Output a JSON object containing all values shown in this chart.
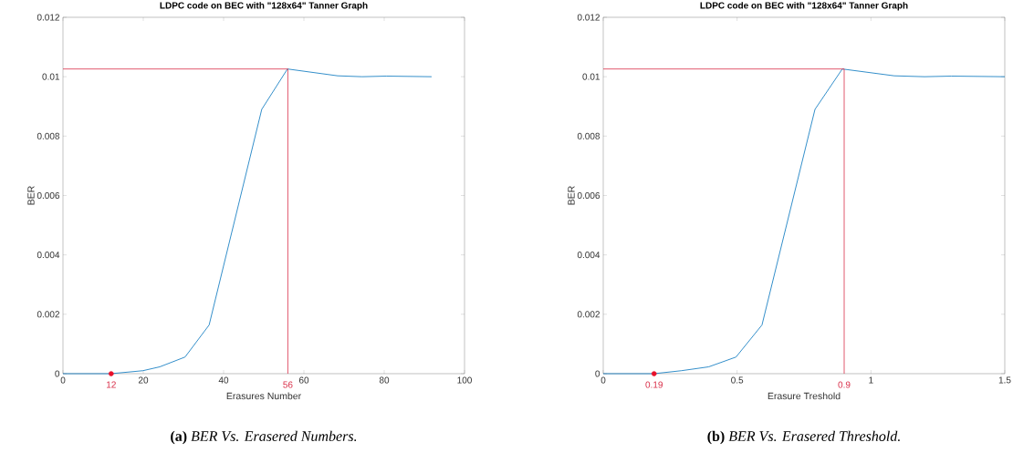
{
  "chart_data": [
    {
      "type": "line",
      "title": "LDPC code on BEC with \"128x64\" Tanner Graph",
      "xlabel": "Erasures Number",
      "ylabel": "BER",
      "xlim": [
        0,
        100
      ],
      "ylim": [
        0,
        0.012
      ],
      "xticks": [
        0,
        20,
        40,
        60,
        80,
        100
      ],
      "yticks": [
        0,
        0.002,
        0.004,
        0.006,
        0.008,
        0.01,
        0.012
      ],
      "grid": false,
      "series": [
        {
          "color": "#0072bd",
          "x": [
            0,
            12,
            19.9,
            24.1,
            30.4,
            36.4,
            49.5,
            55.9,
            68.4,
            74.5,
            80.5,
            91.8
          ],
          "values": [
            0,
            0,
            0.0001,
            0.00023,
            0.00056,
            0.00164,
            0.0089,
            0.01026,
            0.01003,
            0.01,
            0.01002,
            0.01
          ]
        },
        {
          "color": "#d9304a",
          "x": [
            0,
            56,
            56
          ],
          "values": [
            0.01026,
            0.01026,
            0
          ]
        },
        {
          "type": "scatter",
          "color": "#e8102a",
          "marker": "circle",
          "x": [
            12
          ],
          "values": [
            0
          ]
        }
      ],
      "annotations": [
        {
          "text": "12",
          "x": 12,
          "y": 0
        },
        {
          "text": "56",
          "x": 56,
          "y": 0
        },
        "**(a)** *BER Vs. Erasered Numbers.*"
      ]
    },
    {
      "type": "line",
      "title": "LDPC code on BEC with \"128x64\" Tanner Graph",
      "xlabel": "Erasure Treshold",
      "ylabel": "BER",
      "xlim": [
        0,
        1.5
      ],
      "ylim": [
        0,
        0.012
      ],
      "xticks": [
        0,
        0.5,
        1,
        1.5
      ],
      "yticks": [
        0,
        0.002,
        0.004,
        0.006,
        0.008,
        0.01,
        0.012
      ],
      "grid": false,
      "series": [
        {
          "color": "#0072bd",
          "x": [
            0,
            0.19,
            0.292,
            0.394,
            0.496,
            0.593,
            0.791,
            0.893,
            1.087,
            1.2,
            1.3,
            1.5
          ],
          "values": [
            0,
            0,
            0.0001,
            0.00023,
            0.00056,
            0.00164,
            0.0089,
            0.01026,
            0.01003,
            0.01,
            0.01002,
            0.01
          ]
        },
        {
          "color": "#d9304a",
          "x": [
            0,
            0.9,
            0.9
          ],
          "values": [
            0.01026,
            0.01026,
            0
          ]
        },
        {
          "type": "scatter",
          "color": "#e8102a",
          "marker": "circle",
          "x": [
            0.19
          ],
          "values": [
            0
          ]
        }
      ],
      "annotations": [
        {
          "text": "0.19",
          "x": 0.19,
          "y": 0
        },
        {
          "text": "0.9",
          "x": 0.9,
          "y": 0
        },
        "**(b)** *BER Vs. Erasered Threshold.*"
      ]
    }
  ]
}
